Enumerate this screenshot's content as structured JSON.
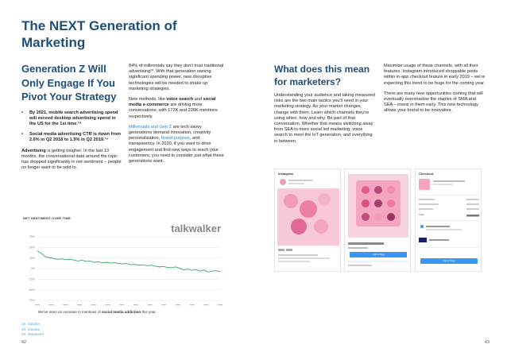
{
  "title": "The NEXT Generation of Marketing",
  "left": {
    "heading": "Generation Z Will Only Engage If You Pivot Your Strategy",
    "bullets": [
      "By 2021, mobile search advertising spend will exceed desktop advertising spend in the US for the 1st time.¹⁸",
      "Social media advertising CTR is down from 2.6% in Q2 2018 to 1.9% in Q2 2019.¹⁹"
    ],
    "para_bold": "Advertising",
    "para_rest": " is getting tougher. In the last 13 months, the conversational data around the topic has dropped significantly in net sentiment – people no longer want to be sold to."
  },
  "mid": {
    "p1": "84% of millennials say they don't trust traditional advertising²⁰. With that generation owning significant spending power, new disruptive technologies will be needed to shake up marketing strategies.",
    "p2_a": "New methods, like ",
    "p2_b1": "voice search",
    "p2_c": " and ",
    "p2_b2": "social media e-commerce",
    "p2_d": " are driving more conversations, with 172K and 226K mentions respectively.",
    "p3_link1": "Millennials and Gen Z",
    "p3_a": " are tech savvy generations demand innovation, creativity personalization, ",
    "p3_link2": "brand purpose",
    "p3_b": ", and transparency. In 2020, if you want to drive engagement and find new ways to reach your customers, you need to consider just what these generations want."
  },
  "chart_data": {
    "type": "line",
    "title": "NET SENTIMENT OVER TIME",
    "brand": "talkwalker",
    "y_ticks": [
      "75%",
      "50%",
      "25%",
      "0%",
      "-25%",
      "-50%",
      "-75%"
    ],
    "ylim": [
      -75,
      75
    ],
    "values": [
      42,
      36,
      28,
      26,
      24,
      22,
      23,
      21,
      22,
      20,
      18,
      20,
      17,
      18,
      15,
      16,
      14,
      15,
      13,
      14,
      12,
      11,
      12,
      9,
      10,
      8,
      9,
      7,
      8,
      6,
      4,
      5,
      3,
      2,
      4,
      1,
      -3,
      -1,
      -4,
      -2,
      -6,
      -3,
      -8,
      -6,
      -5,
      -7
    ],
    "caption_a": "We've seen an increase in mentions of ",
    "caption_b": "social media addiction",
    "caption_c": " this year."
  },
  "footnotes": [
    "18. Statista",
    "19. Statista",
    "20. eMarketer"
  ],
  "page_left": "42",
  "page_right": "43",
  "right": {
    "heading": "What does this mean for marketers?",
    "para": "Understanding your audience and taking measured risks are the two main tactics you'll need in your marketing strategy. As your market changes, change with them. Learn which channels they're using when, how and why. Be part of that conversation. Whether that means switching away from SEA to more social led marketing, voice search to meet the IoT generation, and everything in between.",
    "p1": "Maximize usage of these channels, with all their features. Instagram introduced shoppable posts within in-app checkout feature in early 2019 – we're expecting this trend to be huge for the coming year.",
    "p2": "There are many new opportunities coming that will eventually overshadow the staples of SMA and SEA – invest in them early. This new technology allows your brand to be innovative."
  },
  "phones": {
    "p1_header": "Instagram",
    "p2_header": "",
    "p2_button": "Add to Bag",
    "p3_header": "Checkout",
    "p3_total": "Total",
    "p3_button": "Place Order"
  }
}
